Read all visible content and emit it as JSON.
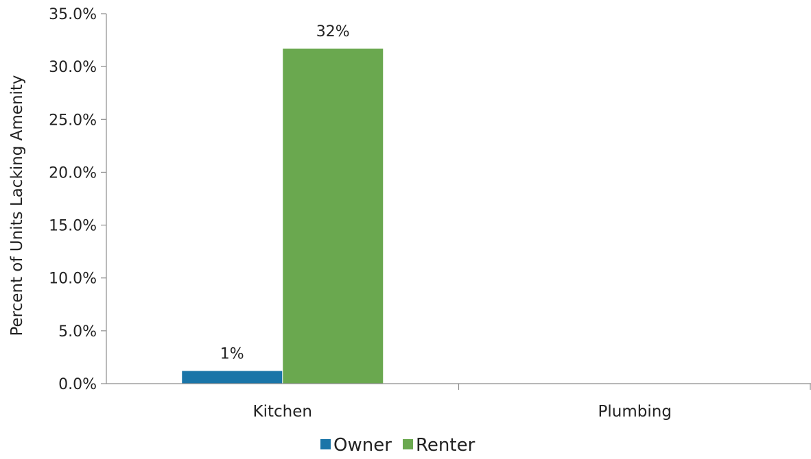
{
  "chart_data": {
    "type": "bar",
    "categories": [
      "Kitchen",
      "Plumbing"
    ],
    "series": [
      {
        "name": "Owner",
        "color": "#1a75a8",
        "values": [
          1.2,
          0
        ],
        "labels": [
          "1%",
          ""
        ]
      },
      {
        "name": "Renter",
        "color": "#6aa84f",
        "values": [
          31.7,
          0
        ],
        "labels": [
          "32%",
          ""
        ]
      }
    ],
    "ylabel": "Percent of Units Lacking Amenity",
    "xlabel": "",
    "ylim": [
      0,
      35
    ],
    "yticks": [
      0,
      5,
      10,
      15,
      20,
      25,
      30,
      35
    ],
    "ytick_labels": [
      "0.0%",
      "5.0%",
      "10.0%",
      "15.0%",
      "20.0%",
      "25.0%",
      "30.0%",
      "35.0%"
    ],
    "grid": false,
    "legend_position": "bottom"
  }
}
